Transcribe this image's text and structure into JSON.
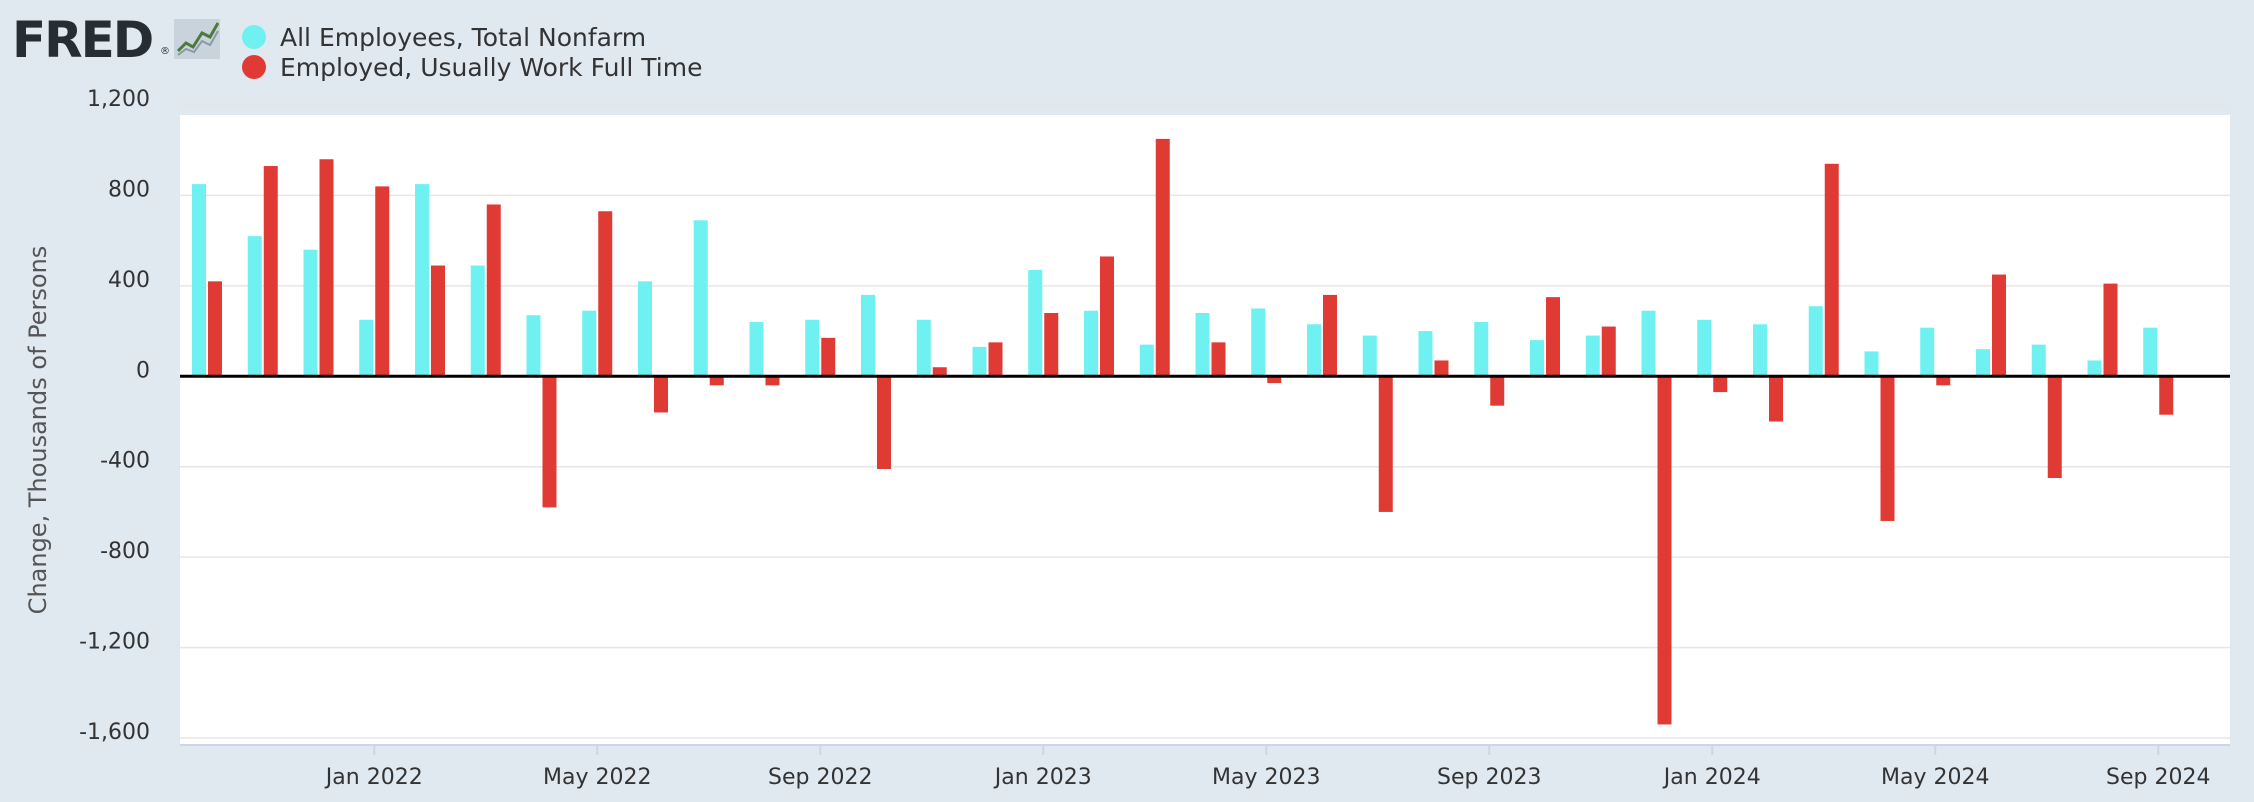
{
  "logo": {
    "text": "FRED",
    "reg": "®",
    "icon": "fred-graph-icon"
  },
  "chart_data": {
    "type": "bar",
    "ylabel": "Change, Thousands of Persons",
    "ylim": [
      -1600,
      1200
    ],
    "yticks": [
      1200,
      800,
      400,
      0,
      -400,
      -800,
      -1200,
      -1600
    ],
    "ytick_labels": [
      "1,200",
      "800",
      "400",
      "0",
      "-400",
      "-800",
      "-1,200",
      "-1,600"
    ],
    "grid": true,
    "legend_position": "top-left",
    "categories": [
      "Oct 2021",
      "Nov 2021",
      "Dec 2021",
      "Jan 2022",
      "Feb 2022",
      "Mar 2022",
      "Apr 2022",
      "May 2022",
      "Jun 2022",
      "Jul 2022",
      "Aug 2022",
      "Sep 2022",
      "Oct 2022",
      "Nov 2022",
      "Dec 2022",
      "Jan 2023",
      "Feb 2023",
      "Mar 2023",
      "Apr 2023",
      "May 2023",
      "Jun 2023",
      "Jul 2023",
      "Aug 2023",
      "Sep 2023",
      "Oct 2023",
      "Nov 2023",
      "Dec 2023",
      "Jan 2024",
      "Feb 2024",
      "Mar 2024",
      "Apr 2024",
      "May 2024",
      "Jun 2024",
      "Jul 2024",
      "Aug 2024",
      "Sep 2024",
      "Oct 2024"
    ],
    "xtick_labels": [
      {
        "category": "Jan 2022",
        "label": "Jan 2022"
      },
      {
        "category": "May 2022",
        "label": "May 2022"
      },
      {
        "category": "Sep 2022",
        "label": "Sep 2022"
      },
      {
        "category": "Jan 2023",
        "label": "Jan 2023"
      },
      {
        "category": "May 2023",
        "label": "May 2023"
      },
      {
        "category": "Sep 2023",
        "label": "Sep 2023"
      },
      {
        "category": "Jan 2024",
        "label": "Jan 2024"
      },
      {
        "category": "May 2024",
        "label": "May 2024"
      },
      {
        "category": "Sep 2024",
        "label": "Sep 2024"
      }
    ],
    "series": [
      {
        "name": "All Employees, Total Nonfarm",
        "color": "#6ff1f1",
        "values": [
          850,
          620,
          560,
          250,
          850,
          490,
          270,
          290,
          420,
          690,
          240,
          250,
          360,
          250,
          130,
          470,
          290,
          140,
          280,
          300,
          230,
          180,
          200,
          240,
          160,
          180,
          290,
          250,
          230,
          310,
          110,
          215,
          120,
          140,
          70,
          215,
          null
        ]
      },
      {
        "name": "Employed, Usually Work Full Time",
        "color": "#e03a34",
        "values": [
          420,
          930,
          960,
          840,
          490,
          760,
          -580,
          730,
          -160,
          -40,
          -40,
          170,
          -410,
          40,
          150,
          280,
          530,
          1050,
          150,
          -30,
          360,
          -600,
          70,
          -130,
          350,
          220,
          -1540,
          -70,
          -200,
          940,
          -640,
          -40,
          450,
          -450,
          410,
          -170,
          null
        ]
      }
    ]
  }
}
